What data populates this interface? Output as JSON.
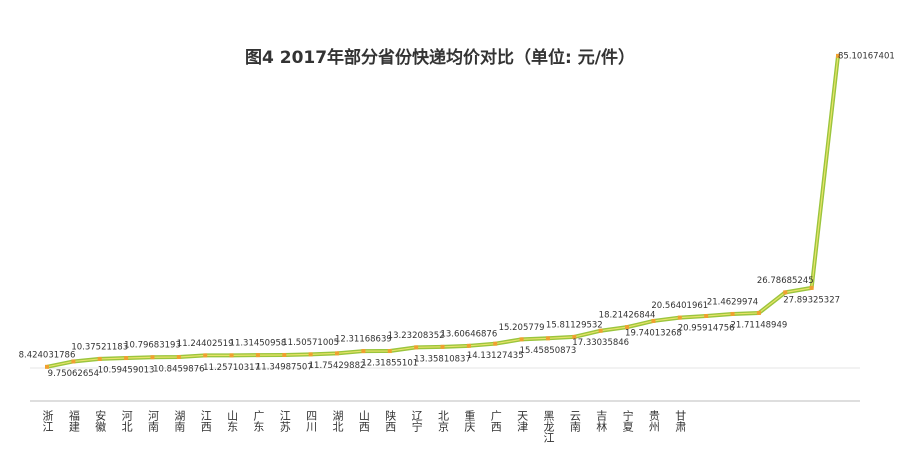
{
  "chart_data": {
    "type": "line",
    "title": "图4  2017年部分省份快递均价对比（单位: 元/件）",
    "categories": [
      "浙江",
      "福建",
      "安徽",
      "河北",
      "河南",
      "湖南",
      "江西",
      "山东",
      "广东",
      "江苏",
      "四川",
      "湖北",
      "山西",
      "陕西",
      "辽宁",
      "北京",
      "重庆",
      "广西",
      "天津",
      "黑龙江",
      "云南",
      "吉林",
      "宁夏",
      "贵州",
      "甘肃",
      null,
      null,
      null,
      null,
      null,
      null
    ],
    "values": [
      8.424031786,
      9.75062654,
      10.37521183,
      10.59459013,
      10.79683193,
      10.8459876,
      11.24402519,
      11.25710317,
      11.31450958,
      11.34987507,
      11.50571005,
      11.75429882,
      12.31168639,
      12.31855101,
      13.23208352,
      13.35810837,
      13.60646876,
      14.13127435,
      15.205779,
      15.45850873,
      15.81129532,
      17.33035846,
      18.21426844,
      19.74013268,
      20.56401961,
      20.95914756,
      21.4629974,
      21.71148949,
      26.78685245,
      27.89325327,
      85.10167401
    ],
    "color": "#9bc53d",
    "marker_color": "#f0a030",
    "ylim": [
      0,
      90
    ]
  }
}
